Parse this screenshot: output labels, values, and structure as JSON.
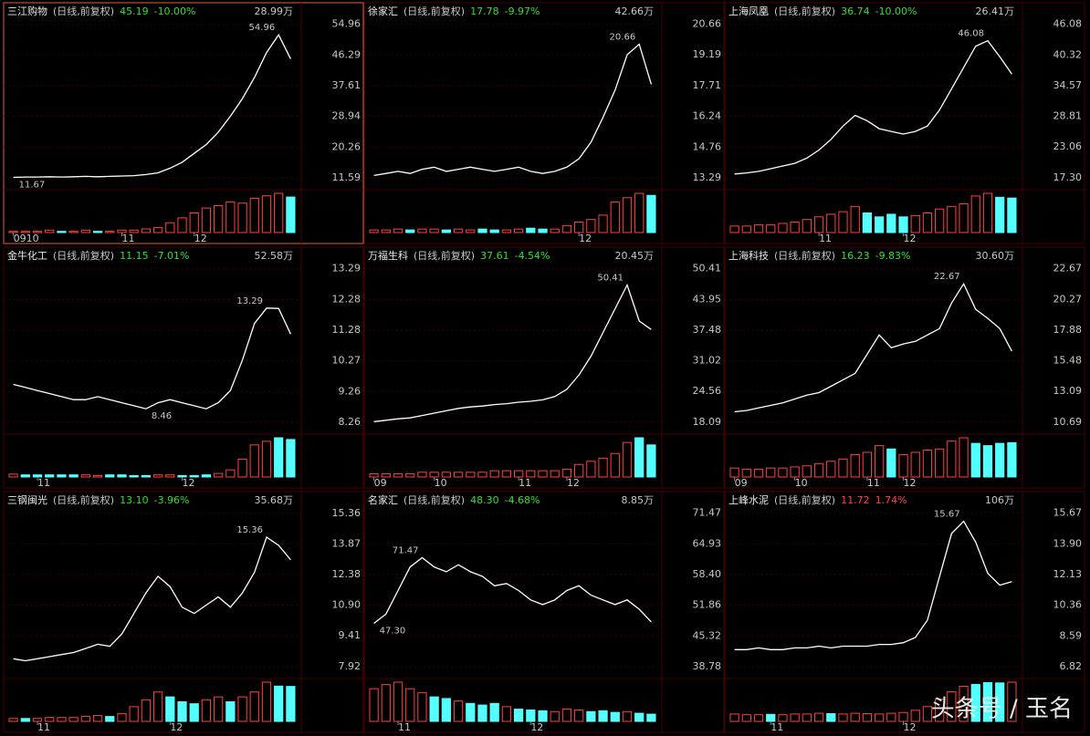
{
  "chart_data": [
    {
      "type": "line",
      "name": "三江购物",
      "info": "(日线,前复权)",
      "price": "45.19",
      "change": "-10.00%",
      "quote_color": "#33dd33",
      "volume_label": "28.99万",
      "selected": true,
      "ylim": [
        9.0,
        56.7
      ],
      "yticks": [
        54.96,
        46.29,
        37.61,
        28.94,
        20.26,
        11.59
      ],
      "high_label": "54.96",
      "low_label": "11.67",
      "categories": [
        "0910",
        null,
        null,
        null,
        null,
        null,
        null,
        null,
        null,
        "11",
        null,
        null,
        null,
        null,
        null,
        "12",
        null,
        null,
        null,
        null,
        null,
        null,
        null,
        null
      ],
      "values": [
        11.7,
        11.8,
        11.8,
        11.9,
        11.8,
        11.9,
        12,
        11.9,
        12,
        12.1,
        12.2,
        12.5,
        13,
        14.3,
        16,
        18.5,
        21,
        24.5,
        29,
        34,
        40,
        47,
        52,
        45.19
      ],
      "volume": [
        1,
        1,
        1,
        2,
        1,
        1,
        2,
        1,
        1,
        2,
        2,
        3,
        4,
        8,
        12,
        16,
        20,
        22,
        25,
        24,
        28,
        30,
        32,
        28.99
      ]
    },
    {
      "type": "line",
      "name": "徐家汇",
      "info": "(日线,前复权)",
      "price": "17.78",
      "change": "-9.97%",
      "quote_color": "#33dd33",
      "volume_label": "42.66万",
      "selected": false,
      "ylim": [
        12.85,
        20.95
      ],
      "yticks": [
        20.66,
        19.19,
        17.71,
        16.24,
        14.76,
        13.29
      ],
      "high_label": "20.66",
      "categories": [
        null,
        null,
        null,
        null,
        null,
        null,
        null,
        null,
        null,
        null,
        null,
        null,
        null,
        null,
        null,
        null,
        null,
        "12",
        null,
        null,
        null,
        null,
        null,
        null
      ],
      "values": [
        13.4,
        13.5,
        13.6,
        13.5,
        13.7,
        13.8,
        13.6,
        13.7,
        13.8,
        13.7,
        13.6,
        13.7,
        13.8,
        13.6,
        13.5,
        13.6,
        13.8,
        14.2,
        15,
        16.2,
        17.5,
        19.2,
        19.7,
        17.78
      ],
      "volume": [
        3,
        3,
        4,
        3,
        4,
        4,
        3,
        4,
        3,
        4,
        3,
        3,
        4,
        5,
        4,
        4,
        8,
        12,
        15,
        20,
        35,
        40,
        45,
        42.66
      ]
    },
    {
      "type": "line",
      "name": "上海凤凰",
      "info": "(日线,前复权)",
      "price": "36.74",
      "change": "-10.00%",
      "quote_color": "#33dd33",
      "volume_label": "26.41万",
      "selected": false,
      "ylim": [
        15.57,
        47.23
      ],
      "yticks": [
        46.08,
        40.32,
        34.57,
        28.81,
        23.06,
        {
          "value": 17.3,
          "label": "17.30"
        }
      ],
      "high_label": "46.08",
      "categories": [
        null,
        null,
        null,
        null,
        null,
        null,
        null,
        "11",
        null,
        null,
        null,
        null,
        null,
        null,
        "12",
        null,
        null,
        null,
        null,
        null,
        null,
        null,
        null,
        null
      ],
      "values": [
        18,
        18.2,
        18.5,
        19,
        19.5,
        20,
        21,
        22.5,
        24.5,
        27,
        29,
        28,
        26.5,
        26,
        25.5,
        26,
        27,
        30,
        34,
        38,
        42,
        43,
        40,
        36.74
      ],
      "volume": [
        5,
        5,
        6,
        6,
        7,
        8,
        10,
        12,
        14,
        16,
        20,
        15,
        12,
        14,
        12,
        13,
        15,
        18,
        20,
        22,
        28,
        30,
        27,
        26.41
      ]
    },
    {
      "type": "line",
      "name": "金牛化工",
      "info": "(日线,前复权)",
      "price": "11.15",
      "change": "-7.01%",
      "quote_color": "#33dd33",
      "volume_label": "52.58万",
      "selected": false,
      "ylim": [
        7.96,
        13.49
      ],
      "yticks": [
        13.29,
        12.28,
        11.28,
        10.27,
        9.26,
        8.26
      ],
      "high_label": "13.29",
      "low_label": "8.46",
      "categories": [
        null,
        null,
        "11",
        null,
        null,
        null,
        null,
        null,
        null,
        null,
        null,
        null,
        null,
        null,
        "12",
        null,
        null,
        null,
        null,
        null,
        null,
        null,
        null,
        null
      ],
      "values": [
        9.5,
        9.4,
        9.3,
        9.2,
        9.1,
        9.0,
        9.0,
        9.1,
        9.0,
        8.9,
        8.8,
        8.7,
        8.9,
        9.0,
        8.9,
        8.8,
        8.7,
        8.9,
        9.3,
        10.3,
        11.5,
        12.0,
        11.99,
        11.15
      ],
      "volume": [
        4,
        3,
        3,
        3,
        3,
        3,
        3,
        2,
        3,
        3,
        2,
        2,
        3,
        3,
        2,
        2,
        3,
        5,
        10,
        25,
        45,
        50,
        55,
        52.58
      ]
    },
    {
      "type": "line",
      "name": "万福生科",
      "info": "(日线,前复权)",
      "price": "37.61",
      "change": "-4.54%",
      "quote_color": "#33dd33",
      "volume_label": "20.45万",
      "selected": false,
      "ylim": [
        16.15,
        51.7
      ],
      "yticks": [
        50.41,
        43.95,
        37.48,
        31.02,
        24.56,
        18.09
      ],
      "high_label": "50.41",
      "categories": [
        "09",
        null,
        null,
        null,
        null,
        "10",
        null,
        null,
        null,
        null,
        null,
        null,
        "11",
        null,
        null,
        null,
        "12",
        null,
        null,
        null,
        null,
        null,
        null,
        null
      ],
      "values": [
        18.2,
        18.5,
        18.8,
        19,
        19.5,
        20,
        20.5,
        21,
        21.3,
        21.5,
        21.8,
        22,
        22.3,
        22.5,
        22.8,
        23.5,
        25,
        28,
        32,
        37,
        42,
        47,
        39.4,
        37.61
      ],
      "volume": [
        2,
        2,
        2,
        2,
        3,
        3,
        3,
        3,
        3,
        3,
        4,
        4,
        4,
        4,
        4,
        4,
        5,
        8,
        10,
        12,
        15,
        22,
        25,
        20.45
      ]
    },
    {
      "type": "line",
      "name": "上海科技",
      "info": "(日线,前复权)",
      "price": "16.23",
      "change": "-9.83%",
      "quote_color": "#33dd33",
      "volume_label": "30.60万",
      "selected": false,
      "ylim": [
        9.97,
        23.15
      ],
      "yticks": [
        22.67,
        20.27,
        17.88,
        15.48,
        13.09,
        10.69
      ],
      "high_label": "22.67",
      "categories": [
        "09",
        null,
        null,
        null,
        null,
        "10",
        null,
        null,
        null,
        null,
        null,
        "11",
        null,
        null,
        "12",
        null,
        null,
        null,
        null,
        null,
        null,
        null,
        null,
        null
      ],
      "values": [
        11.5,
        11.6,
        11.8,
        12,
        12.2,
        12.5,
        12.8,
        13,
        13.5,
        14,
        14.5,
        16,
        17.5,
        16.5,
        16.8,
        17,
        17.5,
        18,
        20,
        21.5,
        19.5,
        18.8,
        18,
        16.23
      ],
      "volume": [
        8,
        7,
        7,
        8,
        8,
        9,
        10,
        12,
        14,
        16,
        20,
        22,
        28,
        25,
        20,
        22,
        24,
        25,
        32,
        35,
        30,
        28,
        30,
        30.6
      ]
    },
    {
      "type": "line",
      "name": "三钢闽光",
      "info": "(日线,前复权)",
      "price": "13.10",
      "change": "-3.96%",
      "quote_color": "#33dd33",
      "volume_label": "35.68万",
      "selected": false,
      "ylim": [
        7.47,
        15.66
      ],
      "yticks": [
        15.36,
        13.87,
        12.38,
        {
          "value": 10.9,
          "label": "10.90"
        },
        9.41,
        7.92
      ],
      "high_label": "15.36",
      "categories": [
        null,
        null,
        "11",
        null,
        null,
        null,
        null,
        null,
        null,
        null,
        null,
        null,
        null,
        "12",
        null,
        null,
        null,
        null,
        null,
        null,
        null,
        null,
        null,
        null
      ],
      "values": [
        8.3,
        8.2,
        8.3,
        8.4,
        8.5,
        8.6,
        8.8,
        9.0,
        8.9,
        9.5,
        10.5,
        11.5,
        12.3,
        11.8,
        10.8,
        10.5,
        10.9,
        11.3,
        10.8,
        11.5,
        12.5,
        14.2,
        13.8,
        13.1
      ],
      "volume": [
        3,
        3,
        3,
        4,
        4,
        4,
        5,
        6,
        5,
        8,
        15,
        22,
        30,
        25,
        20,
        18,
        22,
        25,
        20,
        25,
        30,
        40,
        36,
        35.68
      ]
    },
    {
      "type": "line",
      "name": "名家汇",
      "info": "(日线,前复权)",
      "price": "48.30",
      "change": "-4.68%",
      "quote_color": "#33dd33",
      "volume_label": "8.85万",
      "selected": false,
      "ylim": [
        36.82,
        72.78
      ],
      "yticks": [
        71.47,
        64.93,
        {
          "value": 58.4,
          "label": "58.40"
        },
        51.86,
        45.32,
        38.78
      ],
      "high_label": "71.47",
      "low_label": "47.30",
      "categories": [
        null,
        null,
        "11",
        null,
        null,
        null,
        null,
        null,
        null,
        null,
        null,
        null,
        null,
        "12",
        null,
        null,
        null,
        null,
        null,
        null,
        null,
        null,
        null,
        null
      ],
      "values": [
        48,
        50,
        55,
        60,
        62,
        60,
        59,
        60.5,
        59,
        58,
        56,
        56.5,
        55,
        53,
        52,
        53,
        55,
        56,
        54,
        53,
        52,
        53,
        51,
        48.3
      ],
      "volume": [
        40,
        45,
        48,
        40,
        35,
        30,
        28,
        25,
        22,
        20,
        22,
        18,
        15,
        14,
        13,
        12,
        15,
        14,
        12,
        13,
        11,
        12,
        10,
        8.85
      ]
    },
    {
      "type": "line",
      "name": "上峰水泥",
      "info": "(日线,前复权)",
      "price": "11.72",
      "change": "1.74%",
      "quote_color": "#ff4444",
      "volume_label": "106万",
      "selected": false,
      "ylim": [
        6.29,
        16.02
      ],
      "yticks": [
        15.67,
        {
          "value": 13.9,
          "label": "13.90"
        },
        12.13,
        10.36,
        8.59,
        6.82
      ],
      "high_label": "15.67",
      "categories": [
        null,
        null,
        null,
        "11",
        null,
        null,
        null,
        null,
        null,
        null,
        null,
        null,
        null,
        null,
        "12",
        null,
        null,
        null,
        null,
        null,
        null,
        null,
        null,
        null
      ],
      "values": [
        7.8,
        7.8,
        7.9,
        7.8,
        7.8,
        7.9,
        7.9,
        8,
        7.9,
        8,
        8,
        8,
        8.1,
        8.1,
        8.2,
        8.5,
        9.5,
        12,
        14.5,
        15.2,
        14,
        12.2,
        11.52,
        11.72
      ],
      "volume": [
        20,
        18,
        18,
        19,
        18,
        20,
        20,
        22,
        21,
        20,
        22,
        21,
        20,
        22,
        24,
        30,
        40,
        60,
        80,
        95,
        100,
        105,
        104,
        106
      ]
    }
  ],
  "watermark": "头条号 / 玉名"
}
